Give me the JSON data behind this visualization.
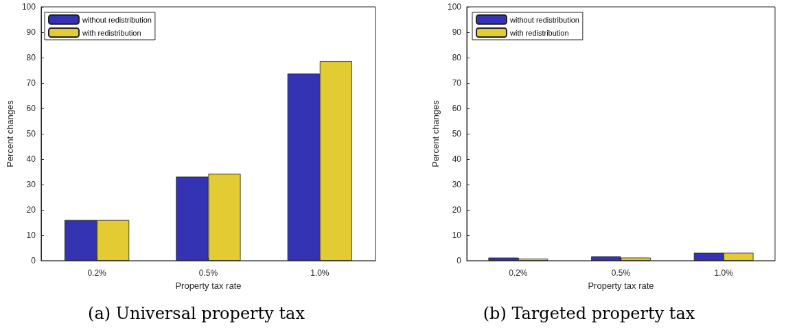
{
  "chart_data": [
    {
      "type": "bar",
      "title": "(a) Universal property tax",
      "xlabel": "Property tax rate",
      "ylabel": "Percent changes",
      "categories": [
        "0.2%",
        "0.5%",
        "1.0%"
      ],
      "series": [
        {
          "name": "without redistribution",
          "color": "#3333b3",
          "values": [
            16,
            33.1,
            73.7
          ]
        },
        {
          "name": "with redistribution",
          "color": "#e3cb33",
          "values": [
            16,
            34.2,
            78.6
          ]
        }
      ],
      "ylim": [
        0,
        100
      ],
      "yticks": [
        0,
        10,
        20,
        30,
        40,
        50,
        60,
        70,
        80,
        90,
        100
      ],
      "grid": false,
      "legend": "top left"
    },
    {
      "type": "bar",
      "title": "(b) Targeted property tax",
      "xlabel": "Property tax rate",
      "ylabel": "Percent changes",
      "categories": [
        "0.2%",
        "0.5%",
        "1.0%"
      ],
      "series": [
        {
          "name": "without redistribution",
          "color": "#3333b3",
          "values": [
            1.2,
            1.7,
            3.1
          ]
        },
        {
          "name": "with redistribution",
          "color": "#e3cb33",
          "values": [
            0.8,
            1.2,
            3.1
          ]
        }
      ],
      "ylim": [
        0,
        100
      ],
      "yticks": [
        0,
        10,
        20,
        30,
        40,
        50,
        60,
        70,
        80,
        90,
        100
      ],
      "grid": false,
      "legend": "top left"
    }
  ]
}
